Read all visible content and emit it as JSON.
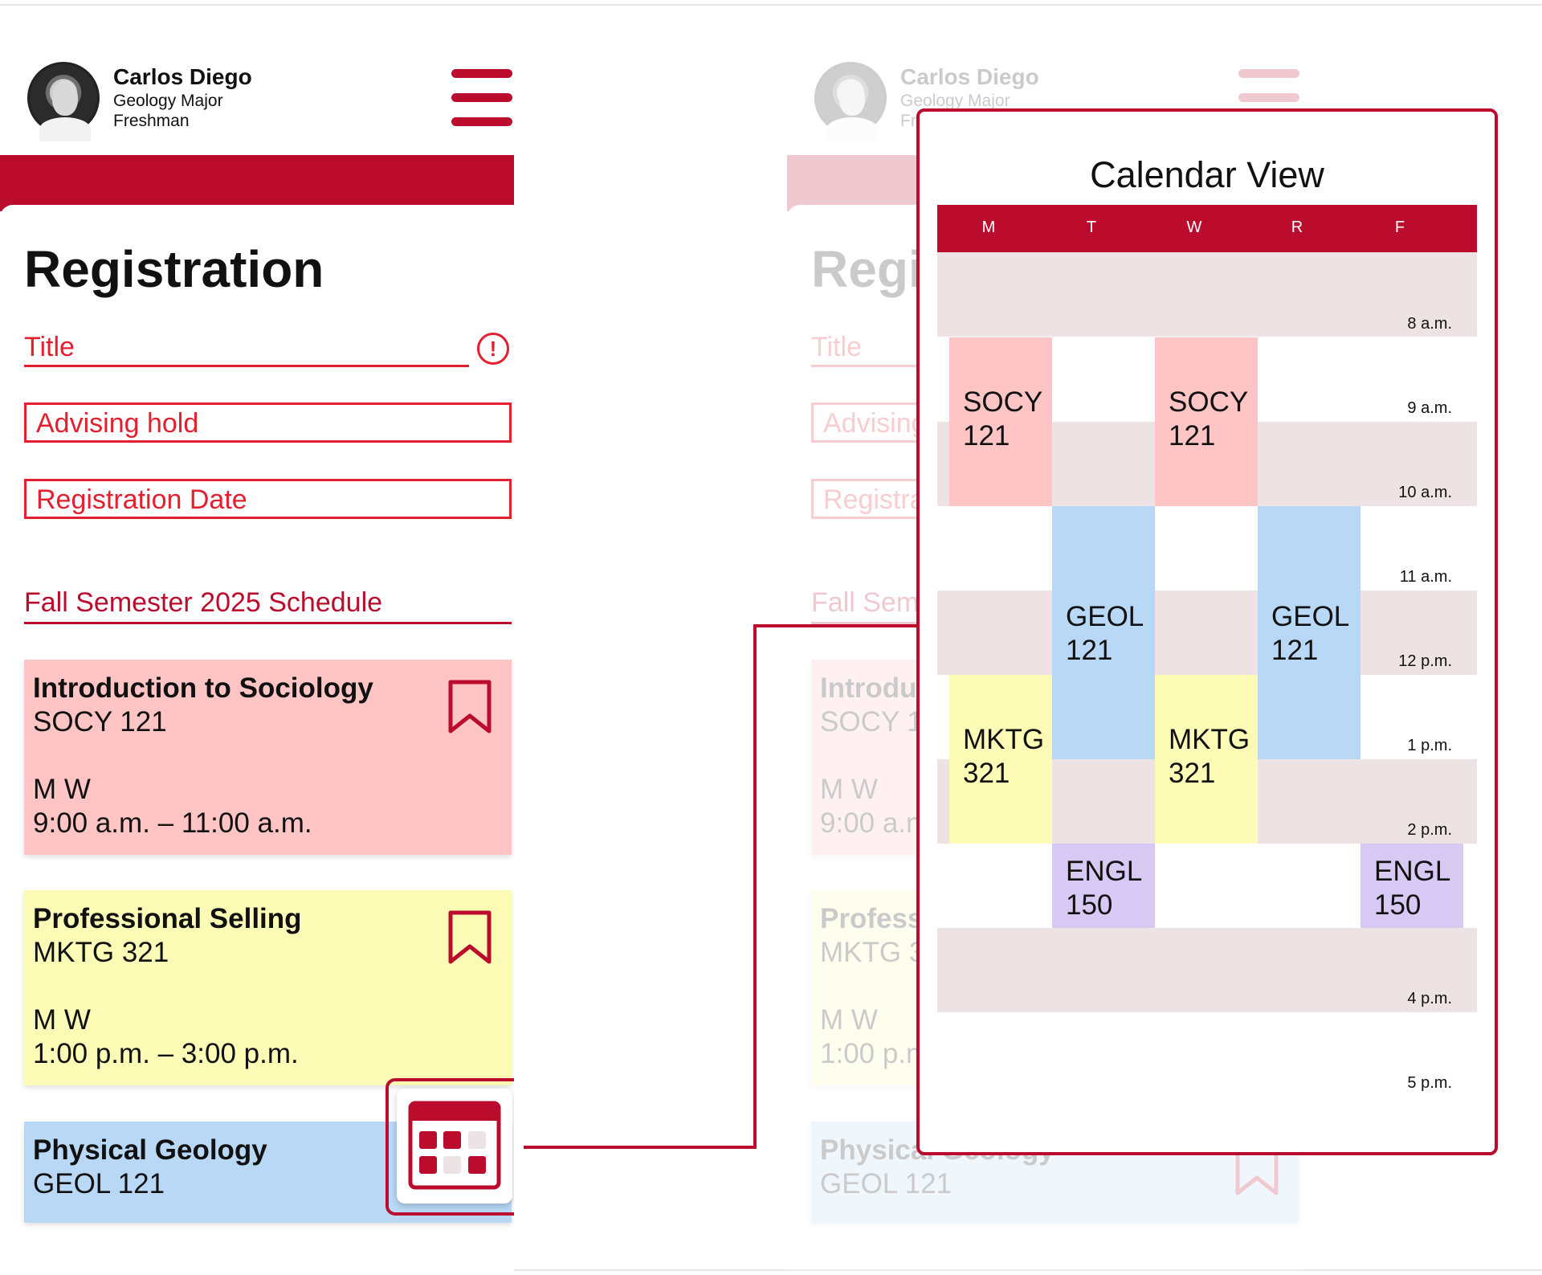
{
  "user": {
    "name": "Carlos Diego",
    "major": "Geology Major",
    "year": "Freshman"
  },
  "page": {
    "title": "Registration"
  },
  "form": {
    "title_label": "Title",
    "alert_symbol": "!",
    "advising_label": "Advising hold",
    "registration_date_label": "Registration Date"
  },
  "schedule": {
    "heading": "Fall Semester 2025 Schedule",
    "courses": [
      {
        "name": "Introduction to Sociology",
        "code": "SOCY 121",
        "days": "M W",
        "time": "9:00 a.m. – 11:00 a.m."
      },
      {
        "name": "Professional Selling",
        "code": "MKTG 321",
        "days": "M W",
        "time": "1:00 p.m. – 3:00 p.m."
      },
      {
        "name": "Physical Geology",
        "code": "GEOL 121"
      }
    ]
  },
  "calendar": {
    "title": "Calendar View",
    "days": [
      "M",
      "T",
      "W",
      "R",
      "F"
    ],
    "times": [
      "8 a.m.",
      "9 a.m.",
      "10 a.m.",
      "11 a.m.",
      "12 p.m.",
      "1 p.m.",
      "2 p.m.",
      "4 p.m.",
      "5 p.m."
    ],
    "events": [
      {
        "subject": "SOCY",
        "number": "121",
        "days": [
          "M",
          "W"
        ]
      },
      {
        "subject": "GEOL",
        "number": "121",
        "days": [
          "T",
          "R"
        ]
      },
      {
        "subject": "MKTG",
        "number": "321",
        "days": [
          "M",
          "W"
        ]
      },
      {
        "subject": "ENGL",
        "number": "150",
        "days": [
          "T",
          "F"
        ]
      }
    ]
  },
  "colors": {
    "brand_red": "#bb0c2e",
    "alert_red": "#e22030",
    "sociology": "#ffc4c4",
    "marketing": "#fcfcb7",
    "geology": "#b8d8f6",
    "english": "#d7c8f4",
    "time_band": "#eee3e4"
  },
  "icons": [
    "menu-icon",
    "alert-circle-icon",
    "bookmark-icon",
    "calendar-grid-icon",
    "avatar"
  ]
}
